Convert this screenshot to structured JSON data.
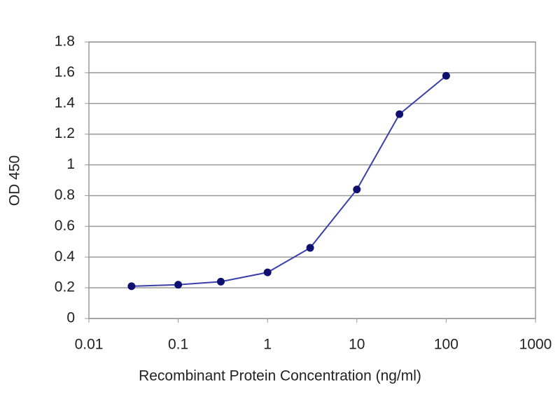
{
  "chart_data": {
    "type": "line",
    "x_label": "Recombinant Protein Concentration (ng/ml)",
    "y_label": "OD 450",
    "x": [
      0.03,
      0.1,
      0.3,
      1,
      3,
      10,
      30,
      100
    ],
    "values": [
      0.21,
      0.22,
      0.24,
      0.3,
      0.46,
      0.84,
      1.33,
      1.58
    ],
    "color": "#3b3fa8",
    "marker_color": "#101070",
    "xlim": [
      0.01,
      1000
    ],
    "xticks": [
      0.01,
      0.1,
      1,
      10,
      100,
      1000
    ],
    "x_log": true,
    "ylim": [
      0,
      1.8
    ],
    "yticks": [
      0,
      0.2,
      0.4,
      0.6,
      0.8,
      1,
      1.2,
      1.4,
      1.6,
      1.8
    ],
    "grid": true
  }
}
